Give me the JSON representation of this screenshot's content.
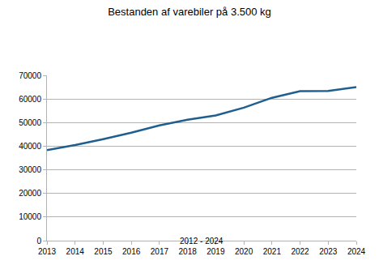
{
  "chart_data": {
    "type": "line",
    "title": "Bestanden af varebiler på 3.500 kg",
    "subtitle": "2012 - 2024",
    "x": [
      2013,
      2014,
      2015,
      2016,
      2017,
      2018,
      2019,
      2020,
      2021,
      2022,
      2023,
      2024
    ],
    "values": [
      38300,
      40500,
      43000,
      45700,
      48800,
      51200,
      53000,
      56300,
      60500,
      63300,
      63400,
      65000
    ],
    "color": "#1f5f8f",
    "xlim": [
      2013,
      2024
    ],
    "xticks": [
      2013,
      2014,
      2015,
      2016,
      2017,
      2018,
      2019,
      2020,
      2021,
      2022,
      2023,
      2024
    ],
    "ylim": [
      0,
      70000
    ],
    "yticks": [
      0,
      10000,
      20000,
      30000,
      40000,
      50000,
      60000,
      70000
    ],
    "grid": true
  }
}
